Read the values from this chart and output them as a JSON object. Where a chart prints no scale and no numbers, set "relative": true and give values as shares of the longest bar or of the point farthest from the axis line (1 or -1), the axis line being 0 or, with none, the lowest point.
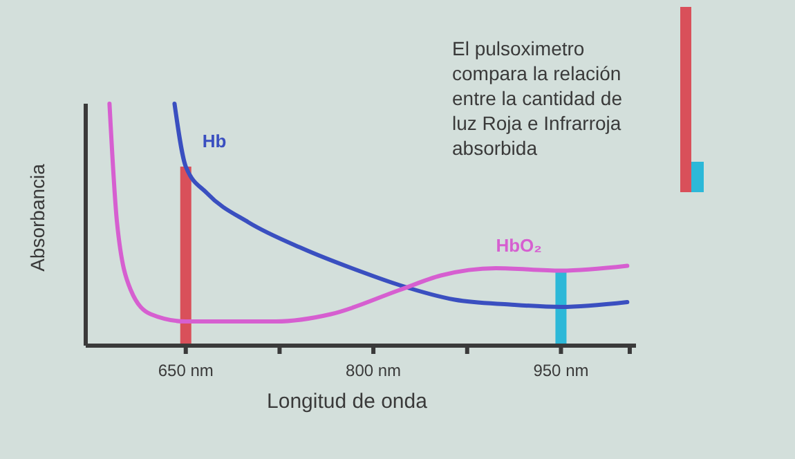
{
  "chart_data": {
    "type": "line",
    "relative": true,
    "xlabel": "Longitud de onda",
    "ylabel": "Absorbancia",
    "xlim": [
      570,
      1010
    ],
    "xticks": [
      {
        "value": 650,
        "label": "650 nm"
      },
      {
        "value": 725,
        "label": null
      },
      {
        "value": 800,
        "label": "800 nm"
      },
      {
        "value": 875,
        "label": null
      },
      {
        "value": 950,
        "label": "950 nm"
      },
      {
        "value": 1005,
        "label": null
      }
    ],
    "annotations": [
      "El pulsoximetro compara la relación entre la cantidad de luz Roja e Infrarroja absorbida"
    ],
    "series": [
      {
        "name": "Hb",
        "color": "#3a4fc0",
        "x": [
          641,
          650,
          667,
          700,
          744,
          788,
          821,
          865,
          909,
          950,
          1003
        ],
        "values": [
          1.0,
          0.74,
          0.63,
          0.51,
          0.4,
          0.31,
          0.25,
          0.19,
          0.17,
          0.16,
          0.18
        ]
      },
      {
        "name": "HbO₂",
        "color": "#d65fd0",
        "x": [
          589,
          595,
          606,
          622,
          650,
          722,
          766,
          821,
          854,
          898,
          950,
          1003
        ],
        "values": [
          1.0,
          0.51,
          0.23,
          0.13,
          0.1,
          0.1,
          0.13,
          0.23,
          0.29,
          0.32,
          0.31,
          0.33
        ]
      },
      {
        "type": "bar",
        "x": [
          650,
          950
        ],
        "values": [
          0.74,
          0.31
        ],
        "colors": [
          "#d9505a",
          "#2cb8d8"
        ]
      }
    ]
  }
}
